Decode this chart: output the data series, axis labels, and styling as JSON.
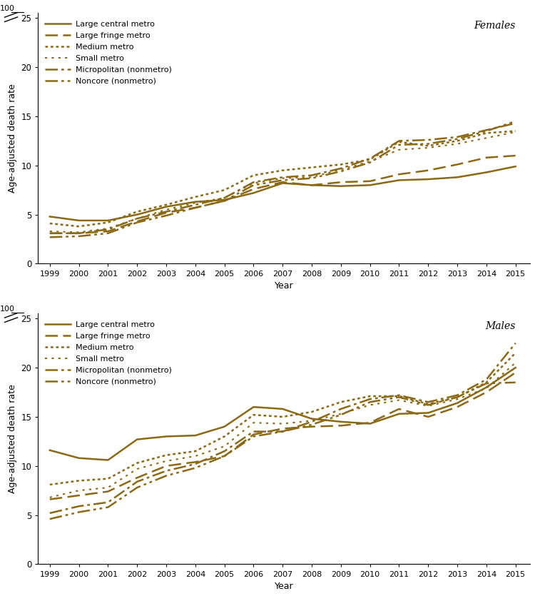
{
  "years": [
    1999,
    2000,
    2001,
    2002,
    2003,
    2004,
    2005,
    2006,
    2007,
    2008,
    2009,
    2010,
    2011,
    2012,
    2013,
    2014,
    2015
  ],
  "females": {
    "large_central_metro": [
      4.8,
      4.4,
      4.4,
      5.0,
      5.8,
      6.3,
      6.5,
      7.2,
      8.2,
      8.0,
      7.9,
      8.0,
      8.5,
      8.6,
      8.8,
      9.3,
      9.9
    ],
    "large_fringe_metro": [
      3.1,
      3.1,
      3.3,
      4.3,
      5.2,
      5.7,
      6.4,
      7.6,
      8.3,
      8.0,
      8.3,
      8.4,
      9.1,
      9.5,
      10.1,
      10.8,
      11.0
    ],
    "medium_metro": [
      4.1,
      3.8,
      4.2,
      5.3,
      6.0,
      6.8,
      7.5,
      9.0,
      9.5,
      9.8,
      10.1,
      10.6,
      12.4,
      12.0,
      12.5,
      13.3,
      13.5
    ],
    "small_metro": [
      3.3,
      3.2,
      3.6,
      4.6,
      5.5,
      6.2,
      6.7,
      8.2,
      8.7,
      8.8,
      9.6,
      10.4,
      11.6,
      11.8,
      12.2,
      12.8,
      13.4
    ],
    "micropolitan": [
      3.1,
      3.1,
      3.5,
      4.6,
      5.3,
      6.0,
      6.7,
      8.3,
      8.8,
      9.0,
      9.7,
      10.7,
      12.5,
      12.6,
      12.9,
      13.6,
      14.3
    ],
    "noncore": [
      2.7,
      2.8,
      3.1,
      4.2,
      4.9,
      5.7,
      6.4,
      8.0,
      8.5,
      8.7,
      9.4,
      10.3,
      12.1,
      12.2,
      12.7,
      13.5,
      14.5
    ]
  },
  "males": {
    "large_central_metro": [
      11.6,
      10.8,
      10.6,
      12.7,
      13.0,
      13.1,
      14.0,
      16.0,
      15.8,
      14.8,
      14.5,
      14.3,
      15.3,
      15.4,
      16.4,
      18.0,
      20.0
    ],
    "large_fringe_metro": [
      6.6,
      7.0,
      7.4,
      8.8,
      10.0,
      10.4,
      11.0,
      13.2,
      13.8,
      14.0,
      14.1,
      14.4,
      15.8,
      15.0,
      16.0,
      17.5,
      19.5
    ],
    "medium_metro": [
      8.1,
      8.5,
      8.7,
      10.3,
      11.1,
      11.5,
      13.0,
      15.2,
      15.0,
      15.5,
      16.5,
      17.1,
      17.1,
      16.3,
      17.0,
      18.5,
      21.5
    ],
    "small_metro": [
      6.8,
      7.5,
      7.8,
      9.7,
      10.5,
      11.0,
      12.0,
      14.4,
      14.3,
      14.6,
      15.3,
      16.2,
      16.7,
      16.1,
      16.8,
      17.9,
      20.5
    ],
    "micropolitan": [
      5.2,
      5.9,
      6.3,
      8.4,
      9.5,
      10.2,
      11.5,
      13.5,
      13.5,
      14.5,
      15.8,
      16.8,
      17.2,
      16.5,
      17.2,
      18.8,
      22.5
    ],
    "noncore": [
      4.6,
      5.3,
      5.8,
      7.8,
      9.0,
      9.8,
      11.0,
      13.0,
      13.5,
      14.2,
      15.2,
      16.5,
      17.0,
      16.2,
      17.0,
      18.4,
      18.5
    ]
  },
  "line_color": "#8B6914",
  "legend_labels": [
    "Large central metro",
    "Large fringe metro",
    "Medium metro",
    "Small metro",
    "Micropolitan (nonmetro)",
    "Noncore (nonmetro)"
  ],
  "yticks": [
    0,
    5,
    10,
    15,
    20,
    25
  ],
  "ylabel": "Age-adjusted death rate",
  "xlabel": "Year",
  "panel_labels": [
    "Females",
    "Males"
  ]
}
